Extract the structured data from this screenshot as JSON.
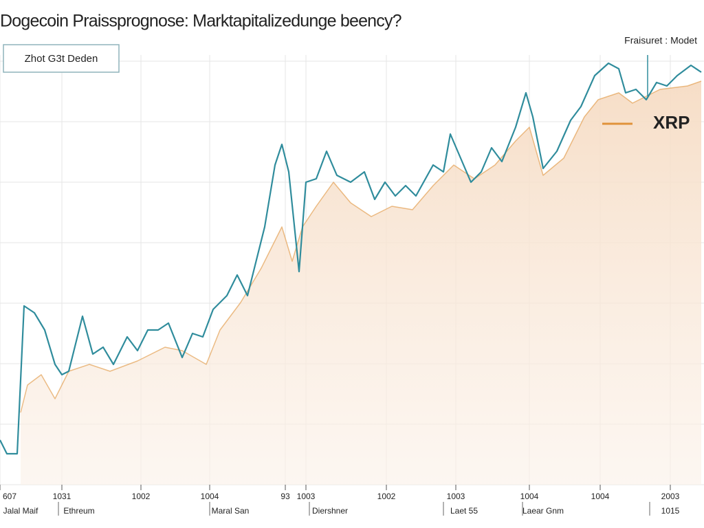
{
  "chart_data": {
    "type": "line",
    "title": "Dogecoin Praissprognose: Marktapitalizedunge beency?",
    "box_label": "Zhot G3t Deden",
    "corner_label": "Fraisuret : Modet",
    "legend_position": "upper right",
    "grid": true,
    "xlim": [
      0,
      1020
    ],
    "ylim": [
      0,
      616
    ],
    "yticks": [
      0,
      88,
      176,
      264,
      352,
      440,
      528,
      616
    ],
    "xticks": [
      {
        "value": 0,
        "label": "607"
      },
      {
        "value": 90,
        "label": "1031"
      },
      {
        "value": 205,
        "label": "1002"
      },
      {
        "value": 305,
        "label": "1004"
      },
      {
        "value": 415,
        "label": "93"
      },
      {
        "value": 445,
        "label": "1003"
      },
      {
        "value": 562,
        "label": "1002"
      },
      {
        "value": 663,
        "label": "1003"
      },
      {
        "value": 770,
        "label": "1004"
      },
      {
        "value": 873,
        "label": "1004"
      },
      {
        "value": 975,
        "label": "2003"
      }
    ],
    "x_sublabels": [
      {
        "value": 20,
        "label": "Jalal Maif"
      },
      {
        "value": 115,
        "label": "Ethreum"
      },
      {
        "value": 335,
        "label": "Maral San"
      },
      {
        "value": 480,
        "label": "Diershner"
      },
      {
        "value": 675,
        "label": "Laet 55"
      },
      {
        "value": 790,
        "label": "Laear Gnm"
      },
      {
        "value": 975,
        "label": "1015"
      }
    ],
    "series": [
      {
        "color": "#2f8c9c",
        "x": [
          0,
          10,
          25,
          35,
          50,
          65,
          80,
          90,
          100,
          120,
          135,
          150,
          165,
          185,
          200,
          215,
          230,
          245,
          265,
          280,
          295,
          310,
          330,
          345,
          360,
          385,
          400,
          410,
          420,
          435,
          445,
          460,
          475,
          490,
          510,
          530,
          545,
          560,
          575,
          590,
          605,
          630,
          645,
          655,
          670,
          685,
          700,
          715,
          730,
          750,
          765,
          775,
          790,
          810,
          830,
          845,
          865,
          885,
          900,
          910,
          925,
          940,
          955,
          970,
          985,
          1005,
          1020
        ],
        "values": [
          65,
          45,
          45,
          260,
          250,
          225,
          175,
          160,
          165,
          245,
          190,
          200,
          175,
          215,
          195,
          225,
          225,
          235,
          185,
          220,
          215,
          255,
          275,
          305,
          275,
          375,
          465,
          495,
          455,
          310,
          440,
          445,
          485,
          450,
          440,
          455,
          415,
          440,
          420,
          435,
          420,
          465,
          455,
          510,
          475,
          440,
          455,
          490,
          470,
          520,
          570,
          535,
          460,
          485,
          530,
          550,
          595,
          613,
          605,
          570,
          575,
          560,
          585,
          580,
          595,
          610,
          600
        ]
      },
      {
        "name": "XRP",
        "color": "#e0923a",
        "fill": "#f8e6d5",
        "x": [
          30,
          40,
          60,
          80,
          100,
          130,
          160,
          200,
          240,
          265,
          300,
          320,
          350,
          380,
          410,
          425,
          440,
          460,
          485,
          510,
          540,
          570,
          600,
          630,
          660,
          690,
          720,
          750,
          770,
          790,
          820,
          850,
          870,
          900,
          920,
          960,
          1000,
          1020
        ],
        "values": [
          105,
          145,
          160,
          125,
          165,
          175,
          165,
          180,
          200,
          195,
          175,
          225,
          265,
          315,
          375,
          325,
          375,
          405,
          440,
          410,
          390,
          405,
          400,
          435,
          465,
          445,
          465,
          500,
          520,
          450,
          475,
          535,
          560,
          570,
          555,
          575,
          580,
          587
        ]
      }
    ]
  }
}
